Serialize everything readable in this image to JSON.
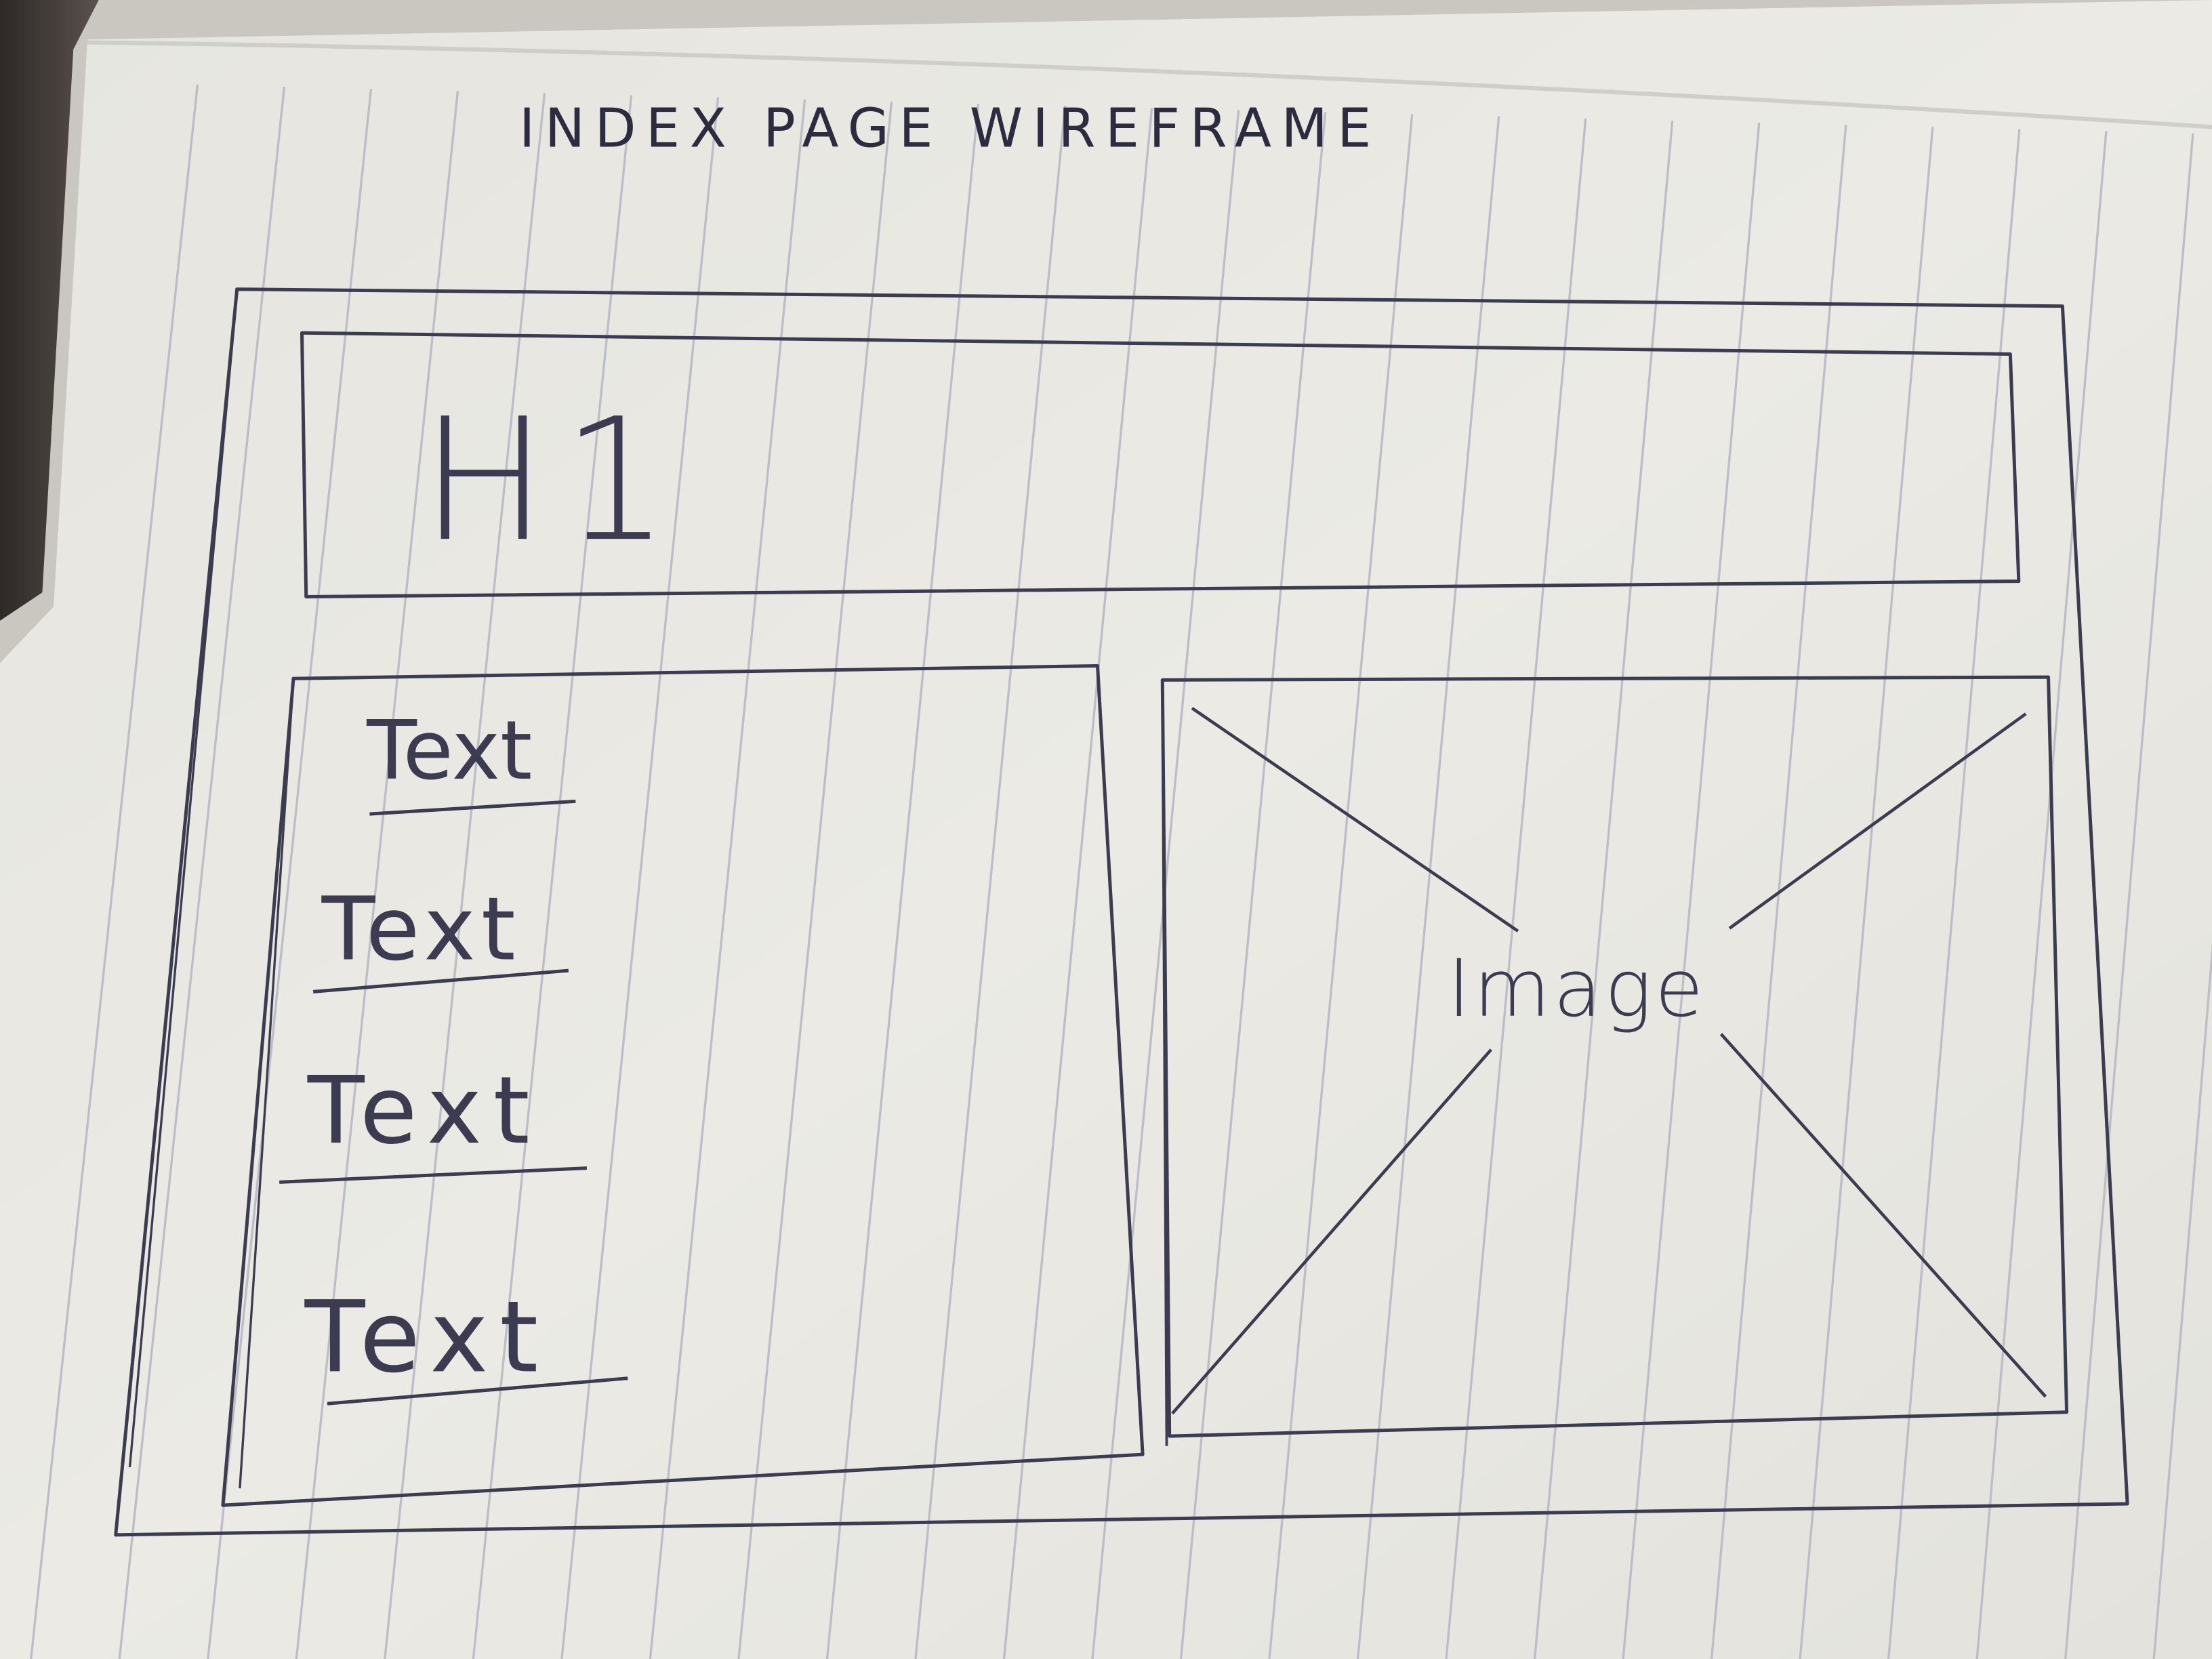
{
  "title": "INDEX PAGE WIREFRAME",
  "header": {
    "heading_label": "H1"
  },
  "text_column": {
    "items": [
      "Text",
      "Text",
      "Text",
      "Text"
    ]
  },
  "image_panel": {
    "label": "Image"
  },
  "colors": {
    "ink": "#3c3b52",
    "paper": "#e9e8e2",
    "ruling": "#bcbdc6",
    "dark_edge": "#3a3533"
  }
}
